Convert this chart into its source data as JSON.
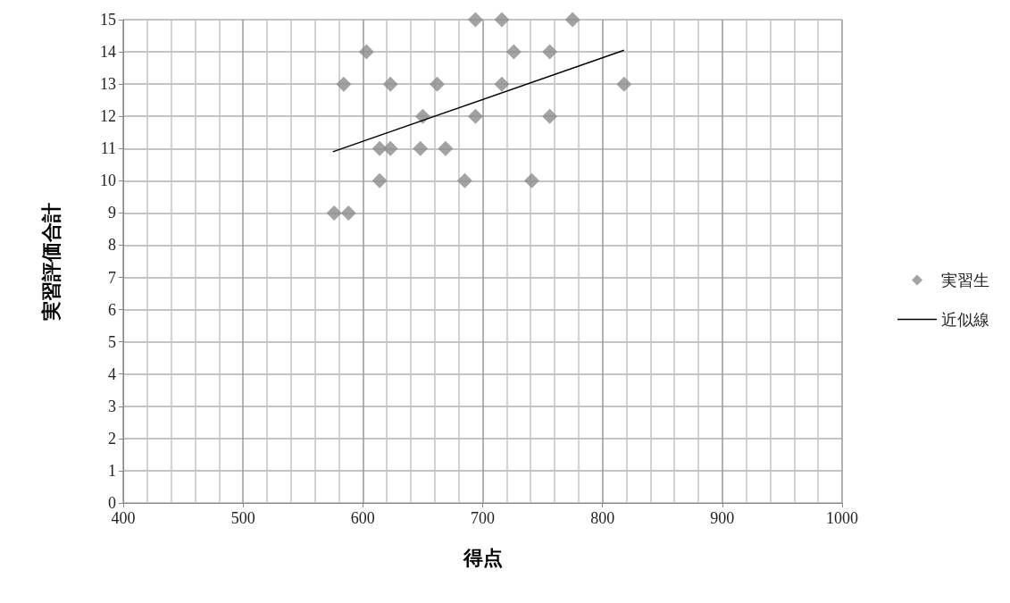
{
  "chart_data": {
    "type": "scatter",
    "xlabel": "得点",
    "ylabel": "実習評価合計",
    "xlim": [
      400,
      1000
    ],
    "xticks": [
      400,
      500,
      600,
      700,
      800,
      900,
      1000
    ],
    "ylim": [
      0,
      15
    ],
    "yticks": [
      0,
      1,
      2,
      3,
      4,
      5,
      6,
      7,
      8,
      9,
      10,
      11,
      12,
      13,
      14,
      15
    ],
    "grid": true,
    "legend": "right",
    "series": [
      {
        "name": "実習生",
        "marker": "diamond",
        "color": "#8c8c8c",
        "x": [
          576,
          588,
          584,
          603,
          614,
          614,
          623,
          623,
          650,
          648,
          662,
          669,
          685,
          694,
          694,
          716,
          726,
          716,
          741,
          775,
          756,
          756,
          818
        ],
        "values": [
          9,
          9,
          13,
          14,
          10,
          11,
          11,
          13,
          12,
          11,
          13,
          11,
          10,
          15,
          12,
          15,
          14,
          13,
          10,
          15,
          14,
          12,
          13
        ]
      },
      {
        "name": "近似線",
        "type": "line",
        "marker": "none",
        "color": "#000000",
        "line_style": "solid",
        "x": [
          575,
          818
        ],
        "values": [
          10.9,
          14.05
        ]
      }
    ]
  }
}
